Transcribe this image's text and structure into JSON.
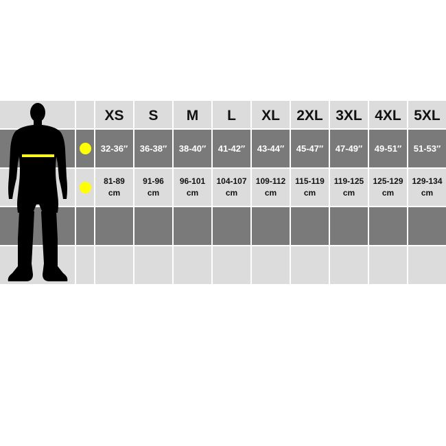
{
  "sizes": [
    "XS",
    "S",
    "M",
    "L",
    "XL",
    "2XL",
    "3XL",
    "4XL",
    "5XL"
  ],
  "inches": [
    "32-36″",
    "36-38″",
    "38-40″",
    "41-42″",
    "43-44″",
    "45-47″",
    "47-49″",
    "49-51″",
    "51-53″"
  ],
  "cm": [
    "81-89",
    "91-96",
    "96-101",
    "104-107",
    "109-112",
    "115-119",
    "119-125",
    "125-129",
    "129-134"
  ],
  "cm_unit": "cm",
  "icons": {
    "measure_marker": "yellow-dot-icon",
    "figure": "male-silhouette-icon"
  },
  "colors": {
    "marker": "#ffff00",
    "dark_row": "#7a7a7a",
    "light_row": "#dcdcdc"
  }
}
